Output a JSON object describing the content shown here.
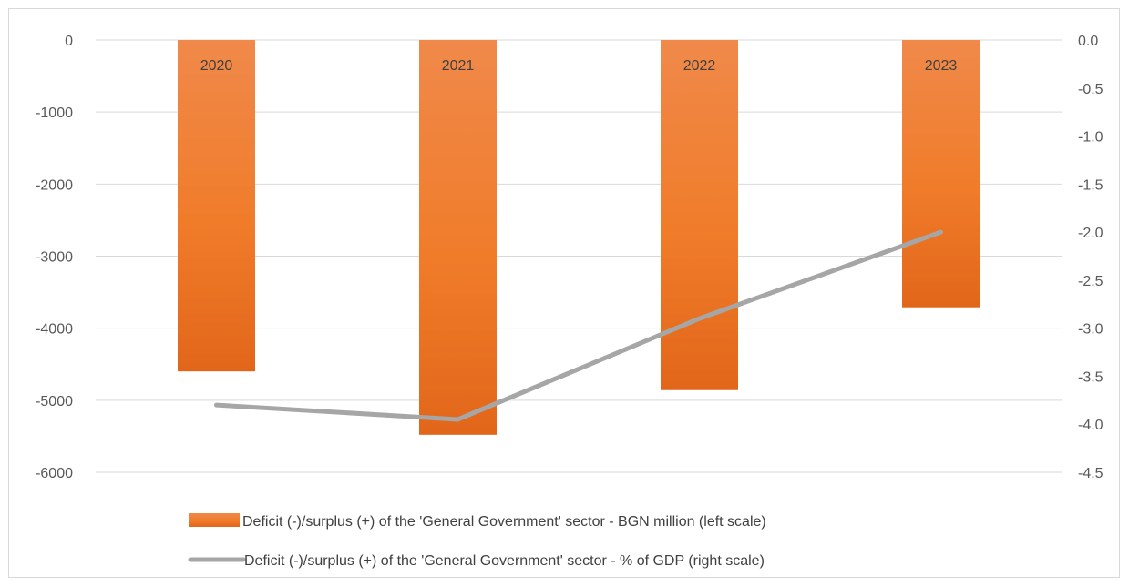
{
  "chart_data": {
    "type": "bar",
    "categories": [
      "2020",
      "2021",
      "2022",
      "2023"
    ],
    "series": [
      {
        "name": "Deficit (-)/surplus (+) of the 'General Government' sector - BGN million (left scale)",
        "type": "bar",
        "axis": "left",
        "values": [
          -4600,
          -5480,
          -4860,
          -3710
        ],
        "color": "#f07c2a"
      },
      {
        "name": "Deficit (-)/surplus (+) of the 'General Government' sector - % of GDP (right scale)",
        "type": "line",
        "axis": "right",
        "values": [
          -3.8,
          -3.95,
          -2.9,
          -2.0
        ],
        "color": "#a6a6a6"
      }
    ],
    "left_axis": {
      "range": [
        -6000,
        0
      ],
      "ticks": [
        0,
        -1000,
        -2000,
        -3000,
        -4000,
        -5000,
        -6000
      ],
      "tick_labels": [
        "0",
        "-1000",
        "-2000",
        "-3000",
        "-4000",
        "-5000",
        "-6000"
      ]
    },
    "right_axis": {
      "range": [
        -4.5,
        0
      ],
      "ticks": [
        0,
        -0.5,
        -1,
        -1.5,
        -2,
        -2.5,
        -3,
        -3.5,
        -4,
        -4.5
      ],
      "tick_labels": [
        "0.0",
        "-0.5",
        "-1.0",
        "-1.5",
        "-2.0",
        "-2.5",
        "-3.0",
        "-3.5",
        "-4.0",
        "-4.5"
      ]
    },
    "grid": true,
    "legend_position": "bottom",
    "title": "",
    "xlabel": "",
    "ylabel": ""
  }
}
